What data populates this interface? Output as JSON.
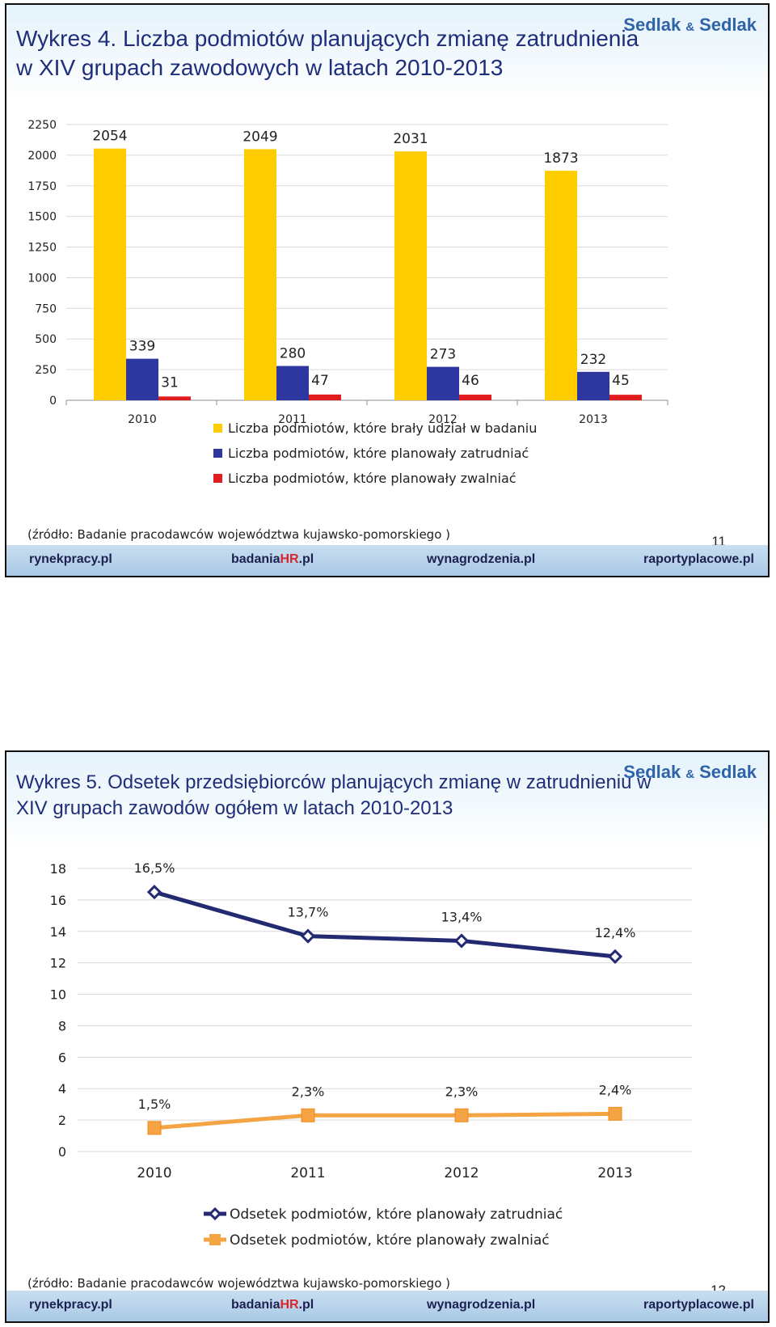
{
  "brand": {
    "name1": "Sedlak",
    "amp": "&",
    "name2": "Sedlak"
  },
  "footer_links": [
    "rynekpracy.pl",
    "badania",
    "HR",
    ".pl",
    "wynagrodzenia.pl",
    "raportyplacowe.pl"
  ],
  "slide1": {
    "title": "Wykres 4. Liczba podmiotów planujących zmianę zatrudnienia w XIV grupach zawodowych w latach 2010-2013",
    "source": "(źródło: Badanie pracodawców województwa kujawsko-pomorskiego )",
    "page_number": "11"
  },
  "slide2": {
    "title": "Wykres 5. Odsetek przedsiębiorców planujących zmianę w zatrudnieniu w XIV grupach zawodów ogółem w latach 2010-2013",
    "source": "(źródło: Badanie pracodawców województwa kujawsko-pomorskiego )",
    "page_number": "12"
  },
  "chart_data": [
    {
      "type": "bar",
      "categories": [
        "2010",
        "2011",
        "2012",
        "2013"
      ],
      "series": [
        {
          "name": "Liczba podmiotów, które brały udział w badaniu",
          "values": [
            2054,
            2049,
            2031,
            1873
          ],
          "color": "#ffcc00"
        },
        {
          "name": "Liczba podmiotów, które planowały zatrudniać",
          "values": [
            339,
            280,
            273,
            232
          ],
          "color": "#2e36a0"
        },
        {
          "name": "Liczba podmiotów, które planowały zwalniać",
          "values": [
            31,
            47,
            46,
            45
          ],
          "color": "#e01c1c"
        }
      ],
      "ylim": [
        0,
        2250
      ],
      "yticks": [
        0,
        250,
        500,
        750,
        1000,
        1250,
        1500,
        1750,
        2000,
        2250
      ],
      "grid": true,
      "legend": "bottom"
    },
    {
      "type": "line",
      "categories": [
        "2010",
        "2011",
        "2012",
        "2013"
      ],
      "series": [
        {
          "name": "Odsetek podmiotów, które planowały zatrudniać",
          "values": [
            16.5,
            13.7,
            13.4,
            12.4
          ],
          "labels": [
            "16,5%",
            "13,7%",
            "13,4%",
            "12,4%"
          ],
          "color": "#232a72",
          "marker": "diamond"
        },
        {
          "name": "Odsetek podmiotów, które planowały zwalniać",
          "values": [
            1.5,
            2.3,
            2.3,
            2.4
          ],
          "labels": [
            "1,5%",
            "2,3%",
            "2,3%",
            "2,4%"
          ],
          "color": "#f5a444",
          "marker": "square"
        }
      ],
      "ylim": [
        0,
        18
      ],
      "yticks": [
        0,
        2,
        4,
        6,
        8,
        10,
        12,
        14,
        16,
        18
      ],
      "grid": true,
      "legend": "bottom"
    }
  ]
}
